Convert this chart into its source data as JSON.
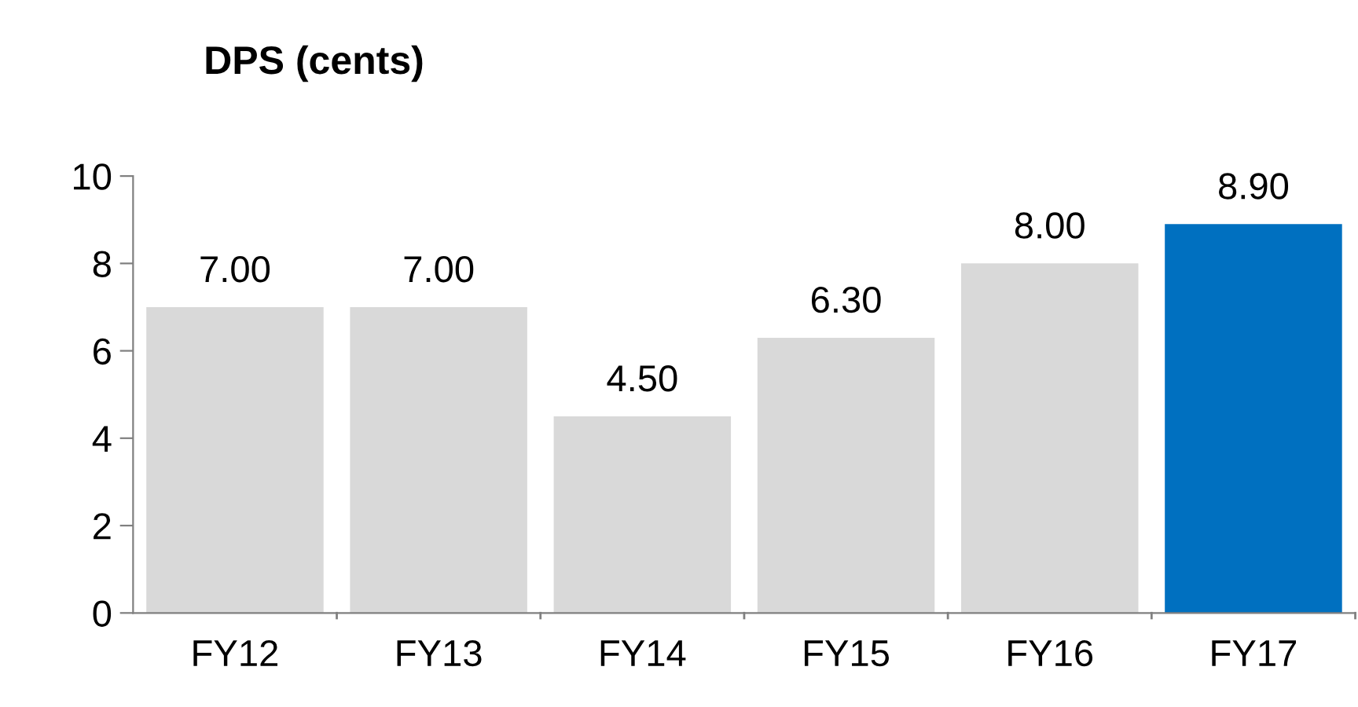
{
  "chart_data": {
    "type": "bar",
    "title": "DPS (cents)",
    "categories": [
      "FY12",
      "FY13",
      "FY14",
      "FY15",
      "FY16",
      "FY17"
    ],
    "values": [
      7.0,
      7.0,
      4.5,
      6.3,
      8.0,
      8.9
    ],
    "value_labels": [
      "7.00",
      "7.00",
      "4.50",
      "6.30",
      "8.00",
      "8.90"
    ],
    "colors": [
      "#d9d9d9",
      "#d9d9d9",
      "#d9d9d9",
      "#d9d9d9",
      "#d9d9d9",
      "#0070c0"
    ],
    "ylim": [
      0,
      10
    ],
    "yticks": [
      0,
      2,
      4,
      6,
      8,
      10
    ],
    "grid": false,
    "legend": false
  }
}
